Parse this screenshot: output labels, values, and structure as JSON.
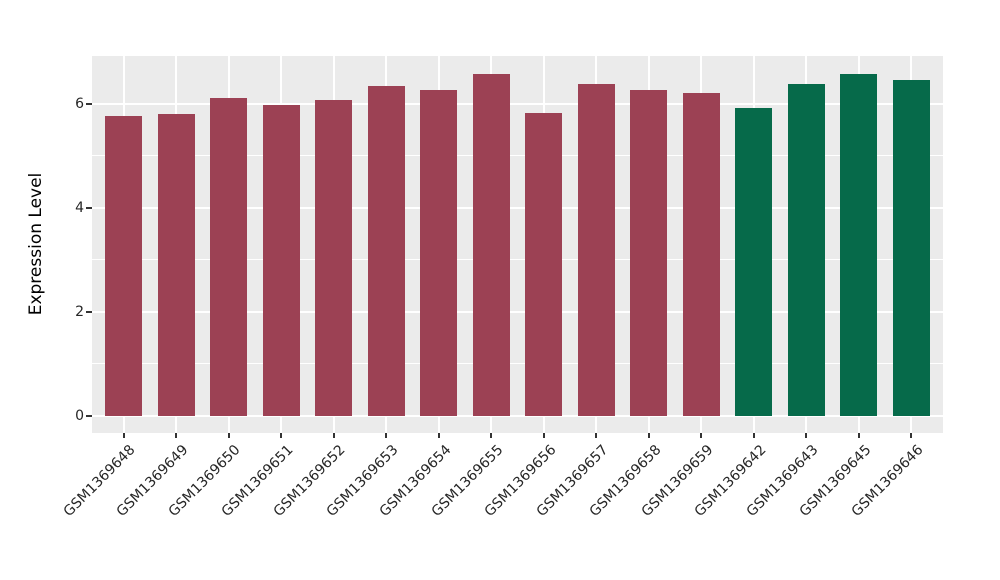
{
  "chart_data": {
    "type": "bar",
    "title": "",
    "xlabel": "",
    "ylabel": "Expression Level",
    "categories": [
      "GSM1369648",
      "GSM1369649",
      "GSM1369650",
      "GSM1369651",
      "GSM1369652",
      "GSM1369653",
      "GSM1369654",
      "GSM1369655",
      "GSM1369656",
      "GSM1369657",
      "GSM1369658",
      "GSM1369659",
      "GSM1369642",
      "GSM1369643",
      "GSM1369645",
      "GSM1369646"
    ],
    "values": [
      5.76,
      5.81,
      6.12,
      5.97,
      6.08,
      6.35,
      6.26,
      6.58,
      5.83,
      6.38,
      6.26,
      6.21,
      5.92,
      6.38,
      6.58,
      6.45
    ],
    "bar_groups": [
      0,
      0,
      0,
      0,
      0,
      0,
      0,
      0,
      0,
      0,
      0,
      0,
      1,
      1,
      1,
      1
    ],
    "group_colors": [
      "#9C4154",
      "#066A4A"
    ],
    "yticks": [
      0,
      2,
      4,
      6
    ],
    "yticks_minor": [
      1,
      3,
      5
    ],
    "ylim": [
      -0.33,
      6.92
    ],
    "grid": true,
    "legend": false,
    "panel_bg": "#EBEBEB",
    "grid_color": "#FFFFFF",
    "tick_mark_color": "#333333",
    "tick_label_color": "#262626",
    "axis_title_color": "#000000"
  }
}
